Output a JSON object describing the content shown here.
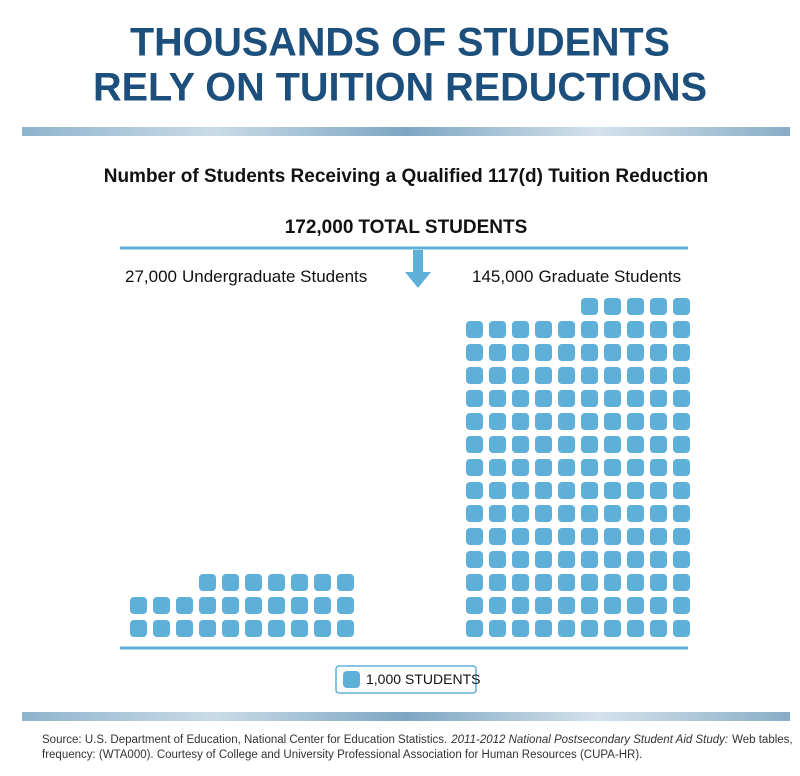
{
  "header": {
    "title_lines": [
      "THOUSANDS OF STUDENTS",
      "RELY ON TUITION REDUCTIONS"
    ]
  },
  "chart_data": {
    "type": "pictogram",
    "title": "Number of Students Receiving a Qualified 117(d) Tuition Reduction",
    "total": 172000,
    "total_label": "172,000",
    "total_text": "TOTAL STUDENTS",
    "unit": 1000,
    "unit_label": "1,000",
    "unit_text": "STUDENTS",
    "color": "#5eb0d8",
    "series": [
      {
        "name": "Undergraduate Students",
        "values": [
          27000
        ],
        "value_labels": [
          "27,000"
        ]
      },
      {
        "name": "Graduate Students",
        "values": [
          145000
        ],
        "value_labels": [
          "145,000"
        ]
      }
    ]
  },
  "footer": {
    "source_prefix": "Source: U.S. Department of Education, National Center for Education Statistics.",
    "source_title": "2011-2012 National Postsecondary Student Aid Study:",
    "source_suffix": "Web tables,",
    "source_line2": "frequency: (WTA000). Courtesy of College and University Professional Association for Human Resources (CUPA-HR)."
  }
}
